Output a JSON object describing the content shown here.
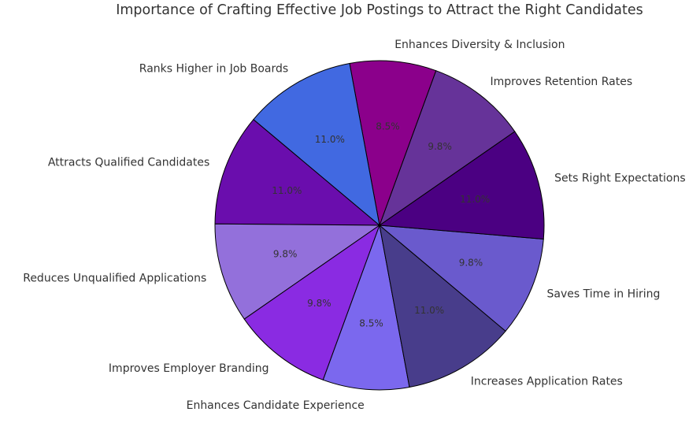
{
  "chart_data": {
    "type": "pie",
    "title": "Importance of Crafting Effective Job Postings to Attract the Right Candidates",
    "categories": [
      "Attracts Qualified Candidates",
      "Reduces Unqualified Applications",
      "Improves Employer Branding",
      "Enhances Candidate Experience",
      "Increases Application Rates",
      "Saves Time in Hiring",
      "Sets Right Expectations",
      "Improves Retention Rates",
      "Enhances Diversity & Inclusion",
      "Ranks Higher in Job Boards"
    ],
    "values": [
      11.0,
      9.8,
      9.8,
      8.5,
      11.0,
      9.8,
      11.0,
      9.8,
      8.5,
      11.0
    ],
    "value_labels": [
      "11.0%",
      "9.8%",
      "9.8%",
      "8.5%",
      "11.0%",
      "9.8%",
      "11.0%",
      "9.8%",
      "8.5%",
      "11.0%"
    ],
    "colors": [
      "#6a0dad",
      "#9370db",
      "#8a2be2",
      "#7b68ee",
      "#483d8b",
      "#6a5acd",
      "#4b0082",
      "#663399",
      "#8b008b",
      "#4169e1"
    ]
  }
}
